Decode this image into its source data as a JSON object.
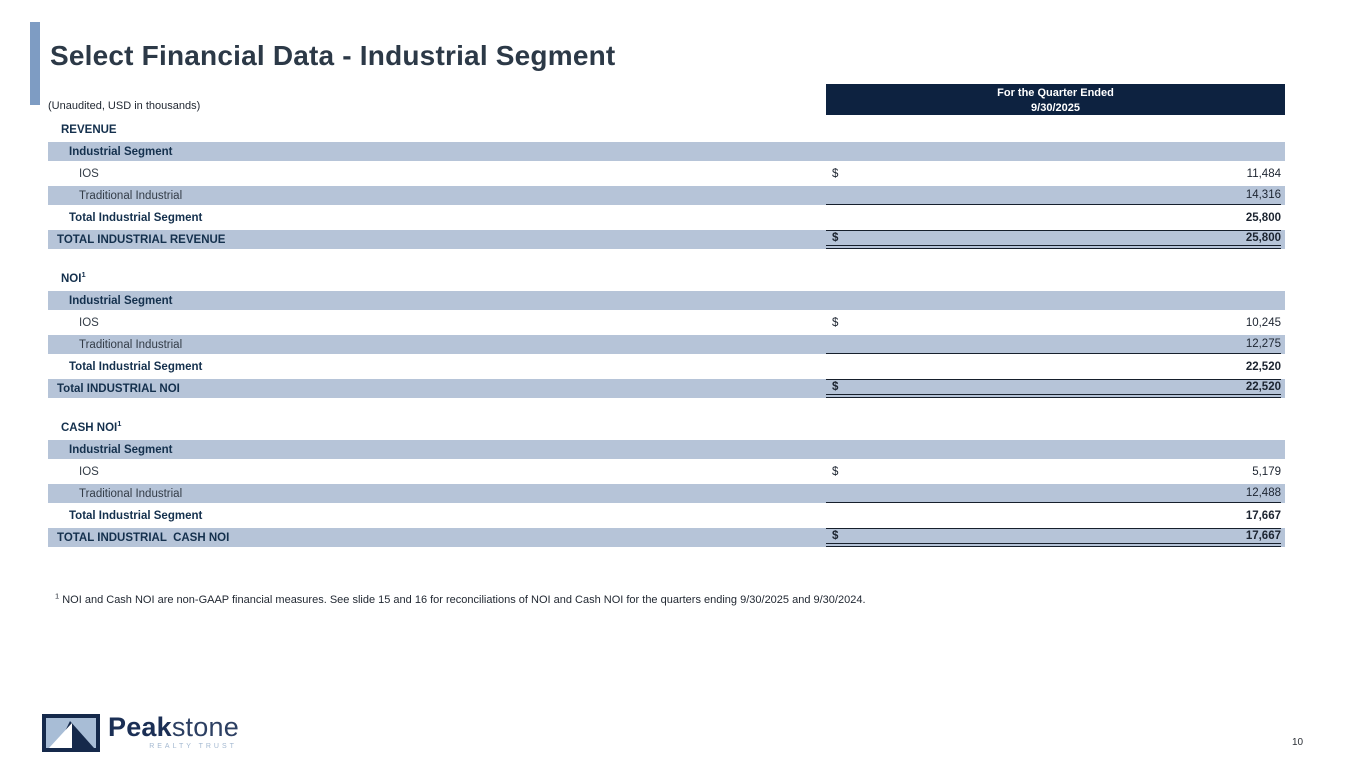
{
  "slide": {
    "title": "Select Financial Data - Industrial Segment",
    "subtitle": "(Unaudited, USD in thousands)",
    "page_number": "10"
  },
  "table": {
    "column_header": {
      "line1": "For the Quarter Ended",
      "line2": "9/30/2025"
    },
    "sections": [
      {
        "name": "REVENUE",
        "sup": "",
        "rows": [
          {
            "label": "Industrial Segment",
            "style": "subheader",
            "dollar": "",
            "value": ""
          },
          {
            "label": "IOS",
            "style": "item",
            "dollar": "$",
            "value": "11,484"
          },
          {
            "label": "Traditional Industrial",
            "style": "item-underline",
            "dollar": "",
            "value": "14,316"
          },
          {
            "label": "Total Industrial Segment",
            "style": "total",
            "dollar": "",
            "value": "25,800"
          },
          {
            "label": "TOTAL INDUSTRIAL REVENUE",
            "style": "grand-total",
            "dollar": "$",
            "value": "25,800"
          }
        ]
      },
      {
        "name": "NOI",
        "sup": "1",
        "rows": [
          {
            "label": "Industrial Segment",
            "style": "subheader",
            "dollar": "",
            "value": ""
          },
          {
            "label": "IOS",
            "style": "item",
            "dollar": "$",
            "value": "10,245"
          },
          {
            "label": "Traditional Industrial",
            "style": "item-underline",
            "dollar": "",
            "value": "12,275"
          },
          {
            "label": "Total Industrial Segment",
            "style": "total",
            "dollar": "",
            "value": "22,520"
          },
          {
            "label": "Total INDUSTRIAL NOI",
            "style": "grand-total",
            "dollar": "$",
            "value": "22,520"
          }
        ]
      },
      {
        "name": "CASH NOI",
        "sup": "1",
        "rows": [
          {
            "label": "Industrial Segment",
            "style": "subheader",
            "dollar": "",
            "value": ""
          },
          {
            "label": "IOS",
            "style": "item",
            "dollar": "$",
            "value": "5,179"
          },
          {
            "label": "Traditional Industrial",
            "style": "item-underline",
            "dollar": "",
            "value": "12,488"
          },
          {
            "label": "Total Industrial Segment",
            "style": "total",
            "dollar": "",
            "value": "17,667"
          },
          {
            "label": "TOTAL INDUSTRIAL  CASH NOI",
            "style": "grand-total",
            "dollar": "$",
            "value": "17,667"
          }
        ]
      }
    ]
  },
  "footnote": {
    "sup": "1",
    "text": " NOI and Cash NOI are non-GAAP financial measures. See slide 15 and 16 for reconciliations of NOI and Cash NOI for the quarters ending 9/30/2025 and 9/30/2024."
  },
  "logo": {
    "brand_bold": "Peak",
    "brand_light": "stone",
    "tagline": "REALTY TRUST"
  },
  "colors": {
    "accent_bar": "#7e9cc3",
    "header_bg": "#0d2240",
    "row_band": "#b6c4d8",
    "navy_text": "#14304d",
    "brand_navy": "#1b2f55",
    "tagline_blue": "#a3b8d0"
  }
}
